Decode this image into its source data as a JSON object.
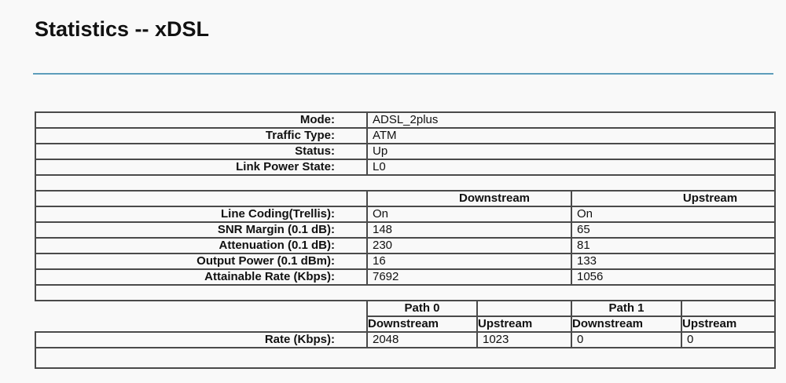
{
  "page_title": "Statistics -- xDSL",
  "info": [
    {
      "label": "Mode:",
      "value": "ADSL_2plus"
    },
    {
      "label": "Traffic Type:",
      "value": "ATM"
    },
    {
      "label": "Status:",
      "value": "Up"
    },
    {
      "label": "Link Power State:",
      "value": "L0"
    }
  ],
  "line_stats": {
    "headers": {
      "downstream": "Downstream",
      "upstream": "Upstream"
    },
    "rows": [
      {
        "label": "Line Coding(Trellis):",
        "down": "On",
        "up": "On"
      },
      {
        "label": "SNR Margin (0.1 dB):",
        "down": "148",
        "up": "65"
      },
      {
        "label": "Attenuation (0.1 dB):",
        "down": "230",
        "up": "81"
      },
      {
        "label": "Output Power (0.1 dBm):",
        "down": "16",
        "up": "133"
      },
      {
        "label": "Attainable Rate (Kbps):",
        "down": "7692",
        "up": "1056"
      }
    ]
  },
  "path_stats": {
    "path0": "Path 0",
    "path1": "Path 1",
    "sub": [
      "Downstream",
      "Upstream",
      "Downstream",
      "Upstream"
    ],
    "rate": {
      "label": "Rate (Kbps):",
      "values": [
        "2048",
        "1023",
        "0",
        "0"
      ]
    }
  }
}
